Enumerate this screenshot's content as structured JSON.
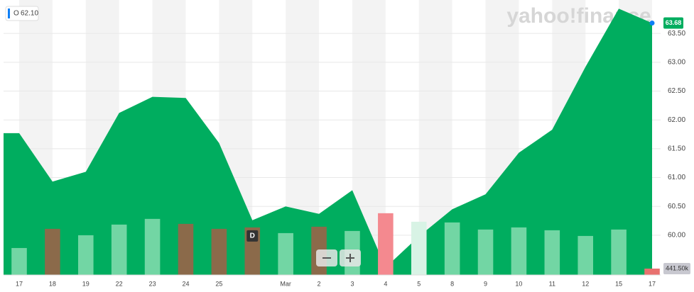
{
  "chart_data": {
    "type": "area",
    "symbol": "O",
    "crosshair_value": "62.10",
    "watermark": "yahoo!finance",
    "categories": [
      "17",
      "18",
      "19",
      "22",
      "23",
      "24",
      "25",
      null,
      "Mar",
      "2",
      "3",
      "4",
      "5",
      "8",
      "9",
      "10",
      "11",
      "12",
      "15",
      "17"
    ],
    "ylim": [
      59.31,
      64.08
    ],
    "yticks": [
      {
        "value": 60,
        "label": "60.00"
      },
      {
        "value": 60.5,
        "label": "60.50"
      },
      {
        "value": 61,
        "label": "61.00"
      },
      {
        "value": 61.5,
        "label": "61.50"
      },
      {
        "value": 62,
        "label": "62.00"
      },
      {
        "value": 62.5,
        "label": "62.50"
      },
      {
        "value": 63,
        "label": "63.00"
      },
      {
        "value": 63.5,
        "label": "63.50"
      }
    ],
    "y2lim": [
      0,
      19000
    ],
    "grid": true,
    "series": [
      {
        "name": "O",
        "color": "#00ad5f",
        "type": "area",
        "values": [
          61.77,
          60.93,
          61.1,
          62.12,
          62.4,
          62.38,
          61.6,
          60.26,
          60.5,
          60.37,
          60.78,
          59.44,
          59.98,
          60.45,
          60.71,
          61.43,
          61.83,
          62.92,
          63.93,
          63.68
        ],
        "value_labels": [
          null,
          null,
          null,
          null,
          null,
          null,
          null,
          null,
          null,
          null,
          null,
          null,
          null,
          null,
          null,
          null,
          null,
          null,
          null,
          "63.68"
        ]
      },
      {
        "name": "Volume",
        "type": "bar",
        "axis": "y2",
        "values": [
          1864,
          3189,
          2747,
          3483,
          3876,
          3532,
          3189,
          3287,
          2894,
          3336,
          3042,
          4268,
          3679,
          3630,
          3140,
          3287,
          3091,
          2698,
          3140,
          441.5
        ],
        "colors": [
          "#72d6a4",
          "#8b6a4a",
          "#72d6a4",
          "#72d6a4",
          "#72d6a4",
          "#8b6a4a",
          "#8b6a4a",
          "#8b6a4a",
          "#72d6a4",
          "#8b6a4a",
          "#72d6a4",
          "#f4898f",
          "#d8f3e5",
          "#72d6a4",
          "#72d6a4",
          "#72d6a4",
          "#72d6a4",
          "#72d6a4",
          "#72d6a4",
          "#e8716f"
        ],
        "value_labels": [
          null,
          null,
          null,
          null,
          null,
          null,
          null,
          null,
          null,
          null,
          null,
          null,
          null,
          null,
          null,
          null,
          null,
          null,
          null,
          "441.50k"
        ]
      }
    ],
    "dividend_marker": {
      "label": "D",
      "index": 7
    }
  }
}
